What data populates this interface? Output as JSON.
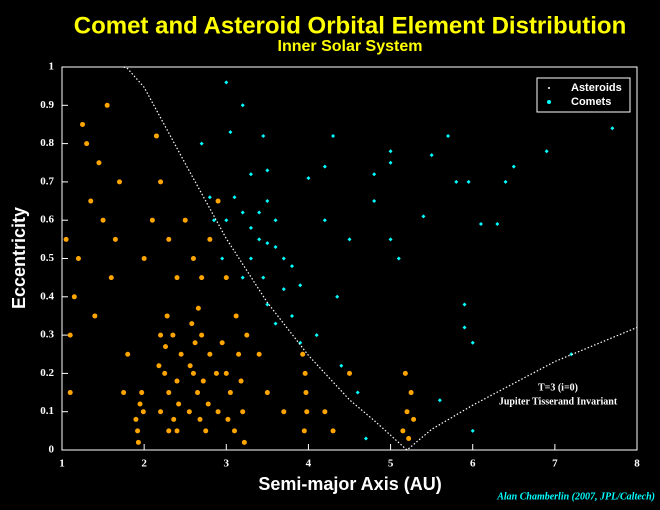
{
  "chart_data": {
    "type": "scatter",
    "title": "Comet and Asteroid Orbital Element Distribution",
    "subtitle": "Inner Solar System",
    "x_label": "Semi-major Axis (AU)",
    "y_label": "Eccentricity",
    "credit": "Alan Chamberlin (2007, JPL/Caltech)",
    "annotations": [
      "T=3 (i=0)",
      "Jupiter Tisserand Invariant"
    ],
    "legend_position": "upper right",
    "xlim": [
      1,
      8
    ],
    "ylim": [
      0,
      1
    ],
    "xticks": [
      1,
      2,
      3,
      4,
      5,
      6,
      7,
      8
    ],
    "yticks": [
      0,
      0.1,
      0.2,
      0.3,
      0.4,
      0.5,
      0.6,
      0.7,
      0.8,
      0.9,
      1
    ],
    "series": [
      {
        "name": "Asteroids",
        "color": "#ffa500",
        "x": [
          1.92,
          1.95,
          1.9,
          1.97,
          1.93,
          1.99,
          2.2,
          2.25,
          2.3,
          2.35,
          2.4,
          2.45,
          2.2,
          2.3,
          2.4,
          2.28,
          2.18,
          2.42,
          2.36,
          2.26,
          2.55,
          2.6,
          2.65,
          2.7,
          2.75,
          2.8,
          2.58,
          2.68,
          2.72,
          2.62,
          2.78,
          2.66,
          2.56,
          2.9,
          3.0,
          3.05,
          3.1,
          3.15,
          3.2,
          3.25,
          2.95,
          3.12,
          3.02,
          3.18,
          2.88,
          3.22,
          3.95,
          3.97,
          3.93,
          3.98,
          3.96,
          5.15,
          5.2,
          5.25,
          5.18,
          5.22,
          5.28,
          1.1,
          1.2,
          1.3,
          1.5,
          1.4,
          1.6,
          1.7,
          1.8,
          1.25,
          1.55,
          2.0,
          2.1,
          2.2,
          2.3,
          2.5,
          2.6,
          2.7,
          2.8,
          3.0,
          2.9,
          1.1,
          1.05,
          2.4,
          1.75,
          3.5,
          3.7,
          4.2,
          4.5,
          3.4,
          1.35,
          1.45,
          1.65,
          1.15,
          2.15,
          4.3
        ],
        "values": [
          0.05,
          0.12,
          0.08,
          0.15,
          0.02,
          0.1,
          0.1,
          0.2,
          0.15,
          0.3,
          0.05,
          0.25,
          0.3,
          0.05,
          0.18,
          0.35,
          0.22,
          0.12,
          0.08,
          0.27,
          0.1,
          0.2,
          0.15,
          0.3,
          0.05,
          0.25,
          0.33,
          0.08,
          0.18,
          0.28,
          0.12,
          0.37,
          0.22,
          0.1,
          0.2,
          0.15,
          0.05,
          0.25,
          0.1,
          0.3,
          0.28,
          0.35,
          0.08,
          0.18,
          0.2,
          0.02,
          0.05,
          0.15,
          0.25,
          0.1,
          0.2,
          0.05,
          0.1,
          0.15,
          0.2,
          0.03,
          0.08,
          0.3,
          0.5,
          0.8,
          0.6,
          0.35,
          0.45,
          0.7,
          0.25,
          0.85,
          0.9,
          0.5,
          0.6,
          0.7,
          0.55,
          0.6,
          0.5,
          0.45,
          0.55,
          0.45,
          0.65,
          0.15,
          0.55,
          0.45,
          0.15,
          0.15,
          0.1,
          0.1,
          0.2,
          0.25,
          0.65,
          0.75,
          0.55,
          0.4,
          0.82,
          0.05
        ]
      },
      {
        "name": "Comets",
        "color": "#00ffff",
        "x": [
          3.0,
          3.05,
          3.2,
          2.7,
          3.45,
          4.3,
          4.5,
          4.8,
          5.0,
          5.0,
          5.5,
          5.4,
          5.7,
          5.8,
          5.95,
          6.4,
          6.5,
          6.9,
          7.7,
          6.1,
          6.3,
          5.9,
          5.9,
          6.0,
          5.0,
          4.2,
          4.0,
          4.2,
          4.8,
          2.8,
          2.85,
          3.0,
          3.1,
          3.2,
          3.3,
          3.4,
          3.5,
          3.6,
          3.7,
          3.8,
          3.4,
          3.5,
          3.6,
          3.3,
          3.2,
          3.45,
          3.7,
          3.8,
          3.5,
          3.6,
          3.3,
          3.5,
          3.9,
          4.1,
          4.4,
          4.6,
          4.7,
          3.9,
          2.95,
          5.1,
          6.0,
          7.2,
          5.6,
          4.35
        ],
        "values": [
          0.96,
          0.83,
          0.9,
          0.8,
          0.82,
          0.82,
          0.55,
          0.65,
          0.75,
          0.78,
          0.77,
          0.61,
          0.82,
          0.7,
          0.7,
          0.7,
          0.74,
          0.78,
          0.84,
          0.59,
          0.59,
          0.38,
          0.32,
          0.05,
          0.55,
          0.6,
          0.71,
          0.74,
          0.72,
          0.66,
          0.6,
          0.6,
          0.66,
          0.62,
          0.58,
          0.55,
          0.54,
          0.53,
          0.5,
          0.48,
          0.62,
          0.65,
          0.6,
          0.5,
          0.45,
          0.45,
          0.42,
          0.35,
          0.38,
          0.33,
          0.72,
          0.73,
          0.28,
          0.3,
          0.22,
          0.15,
          0.03,
          0.43,
          0.5,
          0.5,
          0.28,
          0.25,
          0.13,
          0.4
        ]
      }
    ],
    "reference_curve": {
      "color": "#ffffff",
      "x": [
        1.75,
        1.8,
        2,
        2.5,
        3,
        3.5,
        4,
        4.5,
        4.8,
        5.2,
        5.5,
        6,
        7,
        8
      ],
      "values": [
        1,
        0.9955,
        0.947,
        0.748,
        0.552,
        0.385,
        0.247,
        0.131,
        0.077,
        0,
        0.054,
        0.117,
        0.231,
        0.32
      ]
    }
  }
}
